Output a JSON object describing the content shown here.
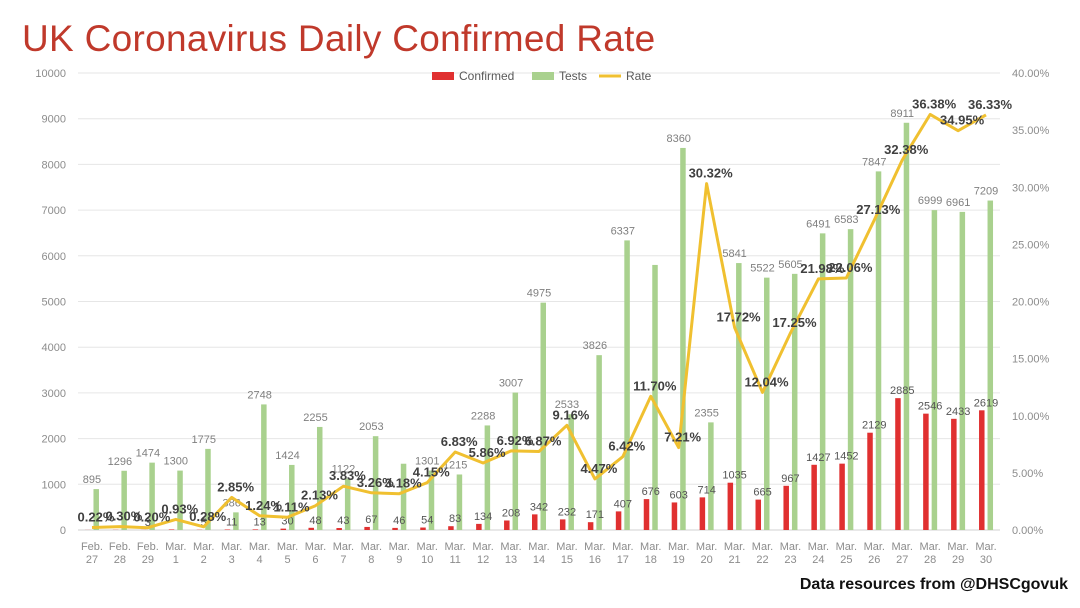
{
  "title": "UK Coronavirus Daily Confirmed Rate",
  "source": "Data resources from @DHSCgovuk",
  "colors": {
    "confirmed": "#e03030",
    "tests": "#a9d18e",
    "rate": "#f0c030"
  },
  "chart_data": {
    "type": "bar",
    "title": "UK Coronavirus Daily Confirmed Rate",
    "categories": [
      "Feb.\n27",
      "Feb.\n28",
      "Feb.\n29",
      "Mar.\n1",
      "Mar.\n2",
      "Mar.\n3",
      "Mar.\n4",
      "Mar.\n5",
      "Mar.\n6",
      "Mar.\n7",
      "Mar.\n8",
      "Mar.\n9",
      "Mar.\n10",
      "Mar.\n11",
      "Mar.\n12",
      "Mar.\n13",
      "Mar.\n14",
      "Mar.\n15",
      "Mar.\n16",
      "Mar.\n17",
      "Mar.\n18",
      "Mar.\n19",
      "Mar.\n20",
      "Mar.\n21",
      "Mar.\n22",
      "Mar.\n23",
      "Mar.\n24",
      "Mar.\n25",
      "Mar.\n26",
      "Mar.\n27",
      "Mar.\n28",
      "Mar.\n29",
      "Mar.\n30"
    ],
    "series": [
      {
        "name": "Confirmed",
        "type": "bar",
        "axis": "left",
        "values": [
          2,
          4,
          3,
          12,
          5,
          11,
          13,
          30,
          48,
          43,
          67,
          46,
          54,
          83,
          134,
          208,
          342,
          232,
          171,
          407,
          676,
          603,
          714,
          1035,
          665,
          967,
          1427,
          1452,
          2129,
          2885,
          2546,
          2433,
          2619
        ]
      },
      {
        "name": "Tests",
        "type": "bar",
        "axis": "left",
        "values": [
          895,
          1296,
          1474,
          1300,
          1775,
          386,
          2748,
          1424,
          2255,
          1122,
          2053,
          1450,
          1301,
          1215,
          2288,
          3007,
          4975,
          2533,
          3826,
          6337,
          5800,
          8360,
          2355,
          5841,
          5522,
          5605,
          6491,
          6583,
          7847,
          8911,
          6999,
          6961,
          7209
        ]
      },
      {
        "name": "Rate",
        "type": "line",
        "axis": "right",
        "values": [
          0.22,
          0.3,
          0.2,
          0.93,
          0.28,
          2.85,
          1.24,
          1.11,
          2.13,
          3.83,
          3.26,
          3.18,
          4.15,
          6.83,
          5.86,
          6.92,
          6.87,
          9.16,
          4.47,
          6.42,
          11.7,
          7.21,
          30.32,
          17.72,
          12.04,
          17.25,
          21.98,
          22.06,
          27.13,
          32.38,
          36.38,
          34.95,
          36.33
        ]
      }
    ],
    "data_labels": {
      "confirmed": [
        "",
        "",
        "3",
        "",
        "5",
        "11",
        "13",
        "30",
        "48",
        "43",
        "67",
        "46",
        "54",
        "83",
        "134",
        "208",
        "342",
        "232",
        "171",
        "407",
        "676",
        "603",
        "714",
        "1035",
        "665",
        "967",
        "1427",
        "1452",
        "2129",
        "2885",
        "2546",
        "2433",
        "2619"
      ],
      "tests": [
        "895",
        "1296",
        "1474",
        "1300",
        "1775",
        "386",
        "2748",
        "1424",
        "2255",
        "1122",
        "2053",
        "",
        "1301",
        "1215",
        "2288",
        "3007",
        "4975",
        "2533",
        "3826",
        "6337",
        "",
        "8360",
        "2355",
        "5841",
        "5522",
        "5605",
        "6491",
        "6583",
        "7847",
        "8911",
        "6999",
        "6961",
        "7209"
      ],
      "rate": [
        "0.22%",
        "0.30%",
        "0.20%",
        "0.93%",
        "0.28%",
        "2.85%",
        "1.24%",
        "1.11%",
        "2.13%",
        "3.83%",
        "3.26%",
        "3.18%",
        "4.15%",
        "6.83%",
        "5.86%",
        "6.92%",
        "6.87%",
        "9.16%",
        "4.47%",
        "6.42%",
        "11.70%",
        "7.21%",
        "30.32%",
        "17.72%",
        "12.04%",
        "17.25%",
        "21.98%",
        "22.06%",
        "27.13%",
        "32.38%",
        "36.38%",
        "34.95%",
        "36.33%"
      ]
    },
    "y_left": {
      "ticks": [
        "0",
        "1000",
        "2000",
        "3000",
        "4000",
        "5000",
        "6000",
        "7000",
        "8000",
        "9000",
        "10000"
      ],
      "ylim": [
        0,
        10000
      ]
    },
    "y_right": {
      "ticks": [
        "0.00%",
        "5.00%",
        "10.00%",
        "15.00%",
        "20.00%",
        "25.00%",
        "30.00%",
        "35.00%",
        "40.00%"
      ],
      "ylim": [
        0,
        40
      ]
    },
    "legend": {
      "placement": "top-center",
      "items": [
        "Confirmed",
        "Tests",
        "Rate"
      ]
    },
    "grid": true
  }
}
